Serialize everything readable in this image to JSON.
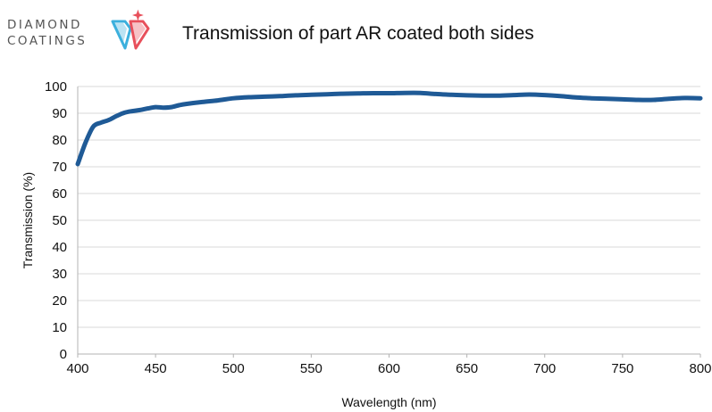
{
  "logo": {
    "line1": "DIAMOND",
    "line2": "COATINGS",
    "icon": "diamond-dc-logo-icon",
    "colors": {
      "blue": "#3cb0dd",
      "red": "#e8505b"
    }
  },
  "chart_data": {
    "type": "line",
    "title": "Transmission of part AR coated both sides",
    "xlabel": "Wavelength (nm)",
    "ylabel": "Transmission (%)",
    "xlim": [
      400,
      800
    ],
    "ylim": [
      0,
      100
    ],
    "xticks": [
      400,
      450,
      500,
      550,
      600,
      650,
      700,
      750,
      800
    ],
    "yticks": [
      0,
      10,
      20,
      30,
      40,
      50,
      60,
      70,
      80,
      90,
      100
    ],
    "grid": "horizontal",
    "legend": "none",
    "line_color": "#1f5a96",
    "series": [
      {
        "x": [
          400,
          405,
          410,
          415,
          420,
          425,
          430,
          435,
          440,
          445,
          450,
          455,
          460,
          465,
          470,
          480,
          490,
          500,
          510,
          520,
          530,
          540,
          550,
          560,
          570,
          580,
          590,
          600,
          610,
          620,
          630,
          640,
          650,
          660,
          670,
          680,
          690,
          700,
          710,
          720,
          730,
          740,
          750,
          760,
          770,
          780,
          790,
          800
        ],
        "y": [
          71,
          79,
          85,
          86.5,
          87.5,
          89,
          90.2,
          90.8,
          91.2,
          91.8,
          92.3,
          92.1,
          92.3,
          93,
          93.5,
          94.2,
          94.8,
          95.6,
          96,
          96.2,
          96.4,
          96.7,
          96.9,
          97.1,
          97.3,
          97.4,
          97.5,
          97.5,
          97.6,
          97.6,
          97.2,
          96.9,
          96.7,
          96.6,
          96.6,
          96.8,
          97,
          96.8,
          96.4,
          95.9,
          95.6,
          95.4,
          95.2,
          95.0,
          95.0,
          95.4,
          95.7,
          95.6
        ]
      }
    ]
  }
}
